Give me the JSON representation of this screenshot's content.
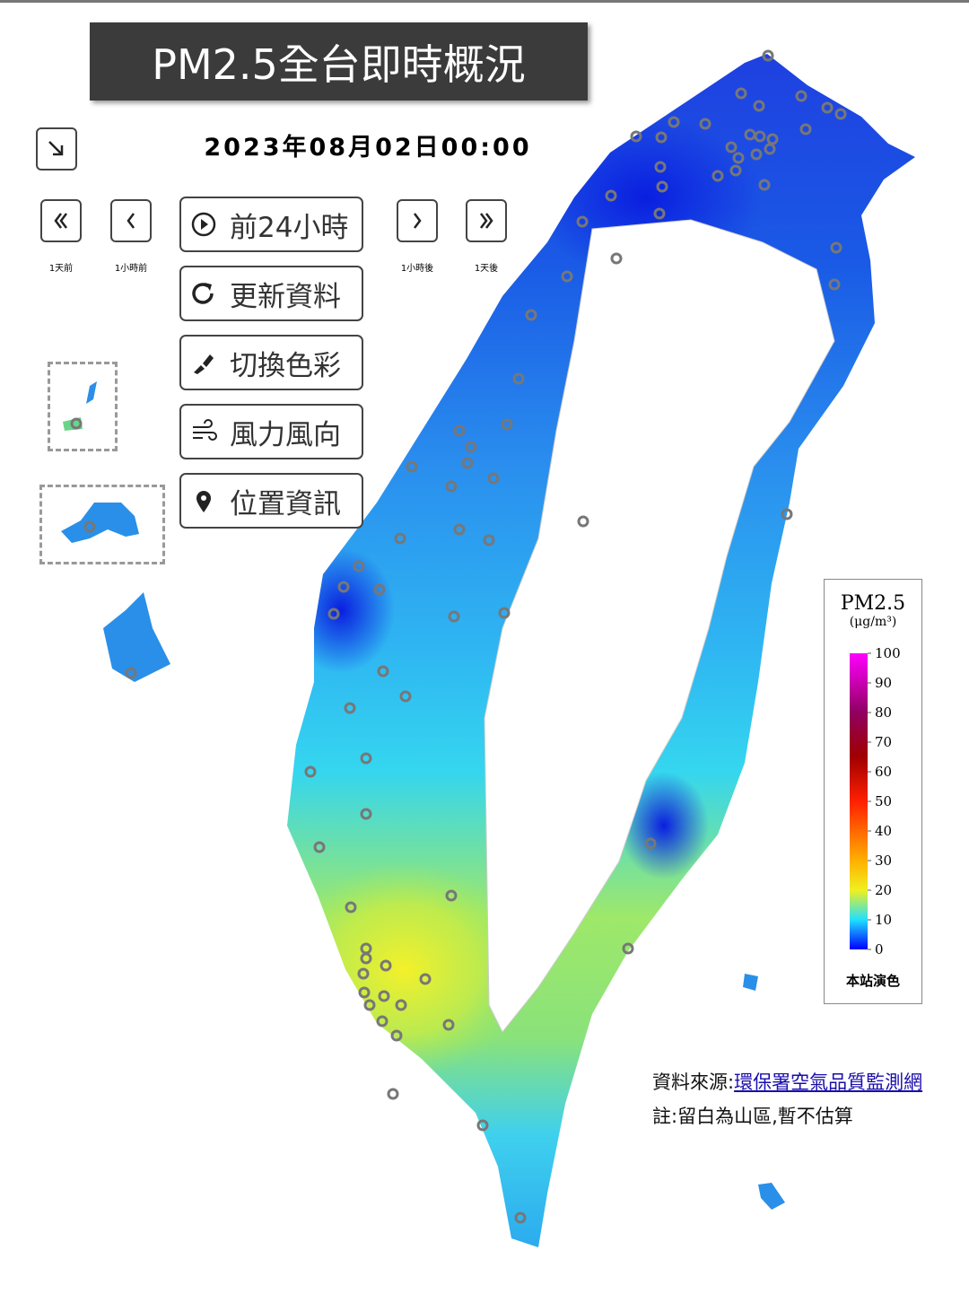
{
  "header": {
    "title": "PM2.5全台即時概況",
    "datetime": "2023年08月02日00:00"
  },
  "nav": [
    {
      "label": "1天前"
    },
    {
      "label": "1小時前"
    },
    {
      "label": "1小時後"
    },
    {
      "label": "1天後"
    }
  ],
  "buttons": [
    "前24小時",
    "更新資料",
    "切換色彩",
    "風力風向",
    "位置資訊"
  ],
  "legend": {
    "title": "PM2.5",
    "unit": "(μg/m³)",
    "ticks": [
      0,
      10,
      20,
      30,
      40,
      50,
      60,
      70,
      80,
      90,
      100
    ],
    "note": "本站演色"
  },
  "footer": {
    "source_label": "資料來源:",
    "source_link": "環保署空氣品質監測網",
    "note": "註:留白為山區,暫不估算"
  }
}
